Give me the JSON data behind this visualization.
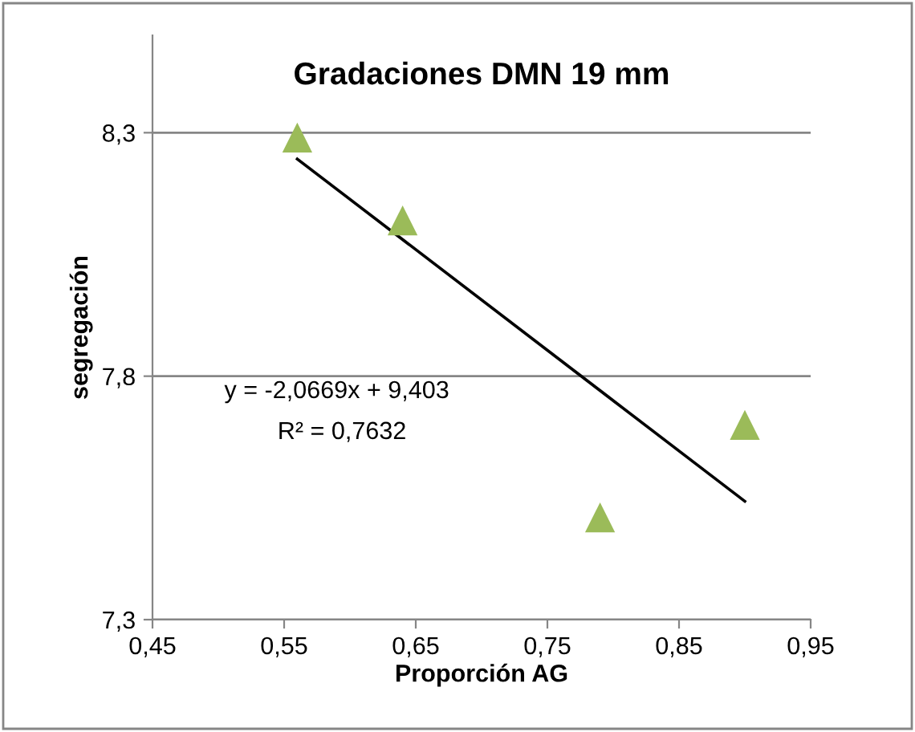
{
  "chart_data": {
    "type": "scatter",
    "title": "Gradaciones DMN 19 mm",
    "xlabel": "Proporción AG",
    "ylabel": "segregación",
    "series": [
      {
        "color": "#9bbb59",
        "marker": "triangle",
        "x": [
          0.56,
          0.64,
          0.79,
          0.9
        ],
        "values": [
          8.29,
          8.12,
          7.51,
          7.7
        ]
      },
      {
        "type": "line",
        "color": "#000000",
        "x": [
          0.56,
          0.9
        ],
        "values": [
          8.246,
          7.543
        ]
      }
    ],
    "xlim": [
      0.45,
      0.95
    ],
    "ylim": [
      7.3,
      8.5
    ],
    "xticks": [
      {
        "value": 0.45,
        "label": "0,45"
      },
      {
        "value": 0.55,
        "label": "0,55"
      },
      {
        "value": 0.65,
        "label": "0,65"
      },
      {
        "value": 0.75,
        "label": "0,75"
      },
      {
        "value": 0.85,
        "label": "0,85"
      },
      {
        "value": 0.95,
        "label": "0,95"
      }
    ],
    "yticks": [
      {
        "value": 7.3,
        "label": "7,3"
      },
      {
        "value": 7.8,
        "label": "7,8"
      },
      {
        "value": 8.3,
        "label": "8,3"
      }
    ],
    "grid": "y",
    "annotations": [
      "y = -2,0669x + 9,403",
      "R² = 0,7632"
    ]
  }
}
